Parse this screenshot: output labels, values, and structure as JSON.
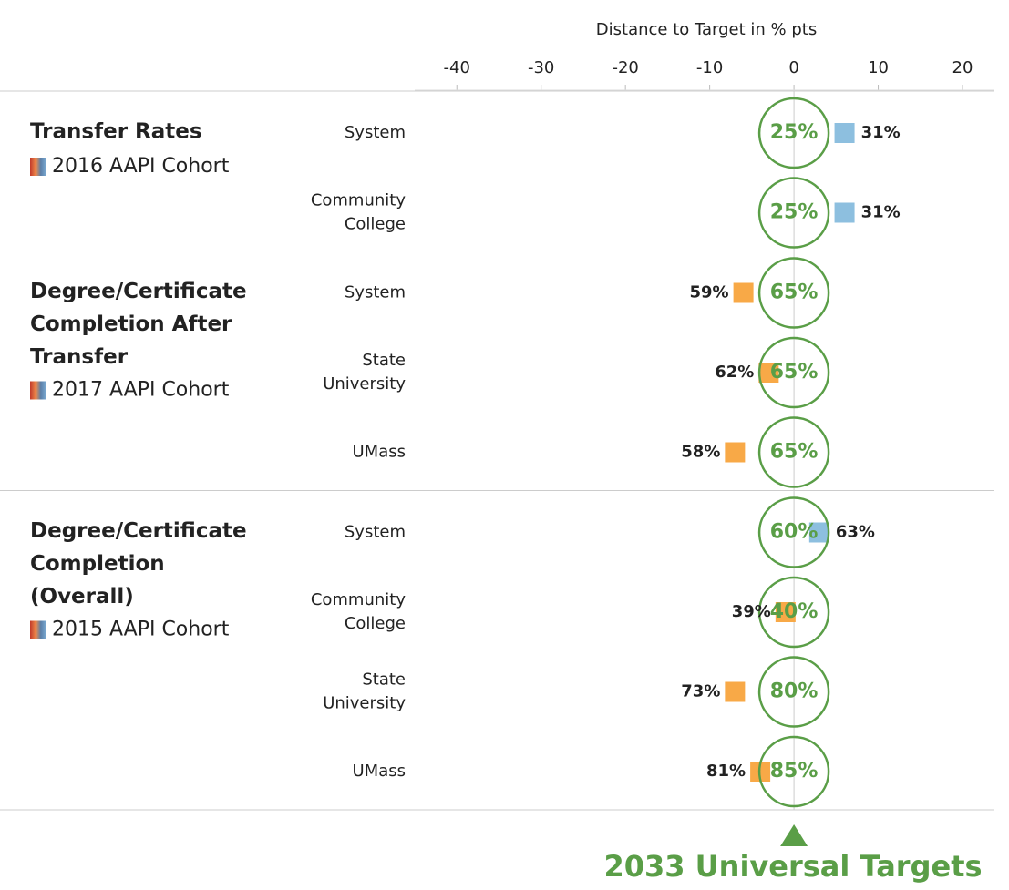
{
  "chart_data": {
    "type": "target_dot",
    "axis_title": "Distance to Target in % pts",
    "xlim": [
      -45,
      24
    ],
    "xticks": [
      -40,
      -30,
      -20,
      -10,
      0,
      10,
      20
    ],
    "color_above": "#8dbfdf",
    "color_below": "#f8a947",
    "target_color": "#5a9e47",
    "groups": [
      {
        "title": [
          "Transfer Rates"
        ],
        "cohort": "2016 AAPI Cohort",
        "rows": [
          {
            "label": [
              "System"
            ],
            "actual": 31,
            "actual_label": "31%",
            "target": 25,
            "target_label": "25%"
          },
          {
            "label": [
              "Community",
              "College"
            ],
            "actual": 31,
            "actual_label": "31%",
            "target": 25,
            "target_label": "25%"
          }
        ]
      },
      {
        "title": [
          "Degree/Certificate",
          "Completion After",
          "Transfer"
        ],
        "cohort": "2017 AAPI Cohort",
        "rows": [
          {
            "label": [
              "System"
            ],
            "actual": 59,
            "actual_label": "59%",
            "target": 65,
            "target_label": "65%"
          },
          {
            "label": [
              "State",
              "University"
            ],
            "actual": 62,
            "actual_label": "62%",
            "target": 65,
            "target_label": "65%"
          },
          {
            "label": [
              "UMass"
            ],
            "actual": 58,
            "actual_label": "58%",
            "target": 65,
            "target_label": "65%"
          }
        ]
      },
      {
        "title": [
          "Degree/Certificate",
          "Completion",
          "(Overall)"
        ],
        "cohort": "2015 AAPI Cohort",
        "rows": [
          {
            "label": [
              "System"
            ],
            "actual": 63,
            "actual_label": "63%",
            "target": 60,
            "target_label": "60%"
          },
          {
            "label": [
              "Community",
              "College"
            ],
            "actual": 39,
            "actual_label": "39%",
            "target": 40,
            "target_label": "40%"
          },
          {
            "label": [
              "State",
              "University"
            ],
            "actual": 73,
            "actual_label": "73%",
            "target": 80,
            "target_label": "80%"
          },
          {
            "label": [
              "UMass"
            ],
            "actual": 81,
            "actual_label": "81%",
            "target": 85,
            "target_label": "85%"
          }
        ]
      }
    ],
    "footer": "2033 Universal Targets"
  }
}
